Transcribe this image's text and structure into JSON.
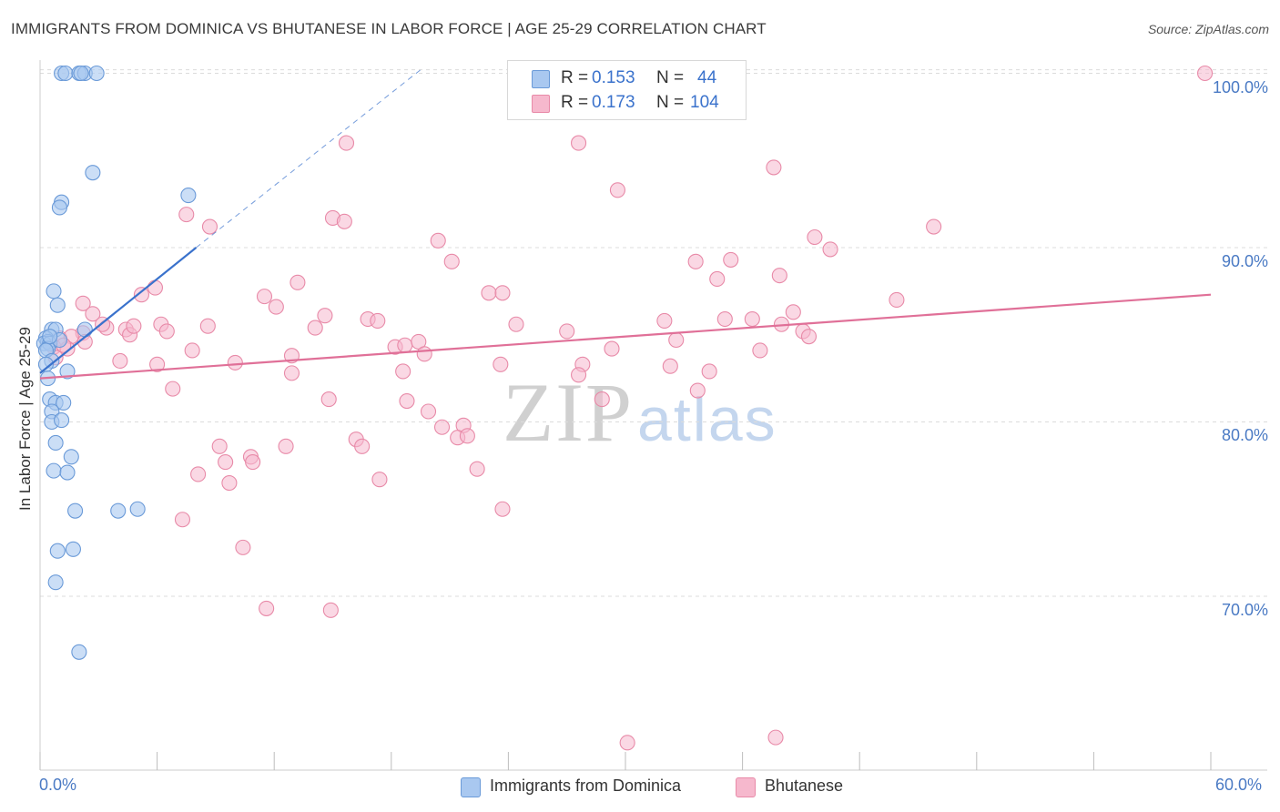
{
  "title": "IMMIGRANTS FROM DOMINICA VS BHUTANESE IN LABOR FORCE | AGE 25-29 CORRELATION CHART",
  "source": "Source: ZipAtlas.com",
  "watermark": {
    "zip": "ZIP",
    "atlas": "atlas"
  },
  "legend_top": [
    {
      "r_label": "R =",
      "r_value": "0.153",
      "n_label": "N =",
      "n_value": "44"
    },
    {
      "r_label": "R =",
      "r_value": "0.173",
      "n_label": "N =",
      "n_value": "104"
    }
  ],
  "colors": {
    "dominica_fill": "#a9c8f0",
    "dominica_stroke": "#6a9ad8",
    "dominica_line": "#3a72cc",
    "bhutanese_fill": "#f6b8cd",
    "bhutanese_stroke": "#e88aa8",
    "bhutanese_line": "#e07098",
    "value_text": "#3a72cc",
    "axis_text": "#4a7ac4"
  },
  "chart_data": {
    "type": "scatter",
    "title": "IMMIGRANTS FROM DOMINICA VS BHUTANESE IN LABOR FORCE | AGE 25-29 CORRELATION CHART",
    "xlabel": "",
    "ylabel": "In Labor Force | Age 25-29",
    "x_tick_labels": [
      "0.0%",
      "60.0%"
    ],
    "y_tick_labels": [
      "70.0%",
      "80.0%",
      "90.0%",
      "100.0%"
    ],
    "y_ticks": [
      70,
      80,
      90,
      100
    ],
    "xlim": [
      0,
      60
    ],
    "ylim": [
      60.5,
      101.5
    ],
    "grid": true,
    "legend_position": "bottom",
    "series": [
      {
        "name": "Immigrants from Dominica",
        "r": 0.153,
        "n": 44,
        "trend": {
          "x": [
            0,
            8.0
          ],
          "y": [
            82.8,
            90.0
          ],
          "dashed_to": [
            19.5,
            100.2
          ]
        },
        "points": [
          [
            1.1,
            100.0
          ],
          [
            1.3,
            100.0
          ],
          [
            2.0,
            100.0
          ],
          [
            2.3,
            100.0
          ],
          [
            2.1,
            100.0
          ],
          [
            2.9,
            100.0
          ],
          [
            2.7,
            94.3
          ],
          [
            7.6,
            93.0
          ],
          [
            1.1,
            92.6
          ],
          [
            1.0,
            92.3
          ],
          [
            0.7,
            87.5
          ],
          [
            0.9,
            86.7
          ],
          [
            0.6,
            85.3
          ],
          [
            0.8,
            85.3
          ],
          [
            2.3,
            85.3
          ],
          [
            0.3,
            84.8
          ],
          [
            0.4,
            84.6
          ],
          [
            0.2,
            84.5
          ],
          [
            0.5,
            84.5
          ],
          [
            0.4,
            84.2
          ],
          [
            0.3,
            84.1
          ],
          [
            1.0,
            84.7
          ],
          [
            0.6,
            83.5
          ],
          [
            0.3,
            83.3
          ],
          [
            1.4,
            82.9
          ],
          [
            0.4,
            82.5
          ],
          [
            0.5,
            81.3
          ],
          [
            0.8,
            81.1
          ],
          [
            1.2,
            81.1
          ],
          [
            0.6,
            80.6
          ],
          [
            0.6,
            80.0
          ],
          [
            1.1,
            80.1
          ],
          [
            0.8,
            78.8
          ],
          [
            1.6,
            78.0
          ],
          [
            0.7,
            77.2
          ],
          [
            1.4,
            77.1
          ],
          [
            1.8,
            74.9
          ],
          [
            4.0,
            74.9
          ],
          [
            5.0,
            75.0
          ],
          [
            0.9,
            72.6
          ],
          [
            1.7,
            72.7
          ],
          [
            0.8,
            70.8
          ],
          [
            2.0,
            66.8
          ],
          [
            0.5,
            84.9
          ]
        ]
      },
      {
        "name": "Bhutanese",
        "r": 0.173,
        "n": 104,
        "trend": {
          "x": [
            0,
            60
          ],
          "y": [
            82.5,
            87.3
          ]
        },
        "points": [
          [
            59.7,
            100.0
          ],
          [
            15.7,
            96.0
          ],
          [
            27.6,
            96.0
          ],
          [
            37.6,
            94.6
          ],
          [
            29.6,
            93.3
          ],
          [
            7.5,
            91.9
          ],
          [
            8.7,
            91.2
          ],
          [
            15.0,
            91.7
          ],
          [
            15.6,
            91.5
          ],
          [
            20.4,
            90.4
          ],
          [
            39.7,
            90.6
          ],
          [
            40.5,
            89.9
          ],
          [
            45.8,
            91.2
          ],
          [
            21.1,
            89.2
          ],
          [
            33.6,
            89.2
          ],
          [
            35.4,
            89.3
          ],
          [
            34.7,
            88.2
          ],
          [
            37.9,
            88.4
          ],
          [
            13.2,
            88.0
          ],
          [
            5.2,
            87.3
          ],
          [
            5.9,
            87.7
          ],
          [
            11.5,
            87.2
          ],
          [
            12.1,
            86.6
          ],
          [
            23.0,
            87.4
          ],
          [
            23.7,
            87.4
          ],
          [
            43.9,
            87.0
          ],
          [
            2.2,
            86.8
          ],
          [
            2.7,
            86.2
          ],
          [
            14.6,
            86.1
          ],
          [
            16.8,
            85.9
          ],
          [
            17.3,
            85.8
          ],
          [
            32.0,
            85.8
          ],
          [
            35.1,
            85.9
          ],
          [
            36.5,
            85.9
          ],
          [
            38.6,
            86.3
          ],
          [
            2.2,
            85.1
          ],
          [
            3.4,
            85.4
          ],
          [
            4.4,
            85.3
          ],
          [
            4.6,
            85.0
          ],
          [
            4.8,
            85.5
          ],
          [
            6.2,
            85.6
          ],
          [
            6.5,
            85.2
          ],
          [
            8.6,
            85.5
          ],
          [
            14.1,
            85.4
          ],
          [
            24.4,
            85.6
          ],
          [
            27.0,
            85.2
          ],
          [
            38.0,
            85.6
          ],
          [
            39.1,
            85.2
          ],
          [
            39.4,
            84.9
          ],
          [
            1.0,
            84.8
          ],
          [
            1.6,
            84.9
          ],
          [
            2.3,
            84.6
          ],
          [
            0.7,
            84.3
          ],
          [
            1.4,
            84.2
          ],
          [
            7.8,
            84.1
          ],
          [
            18.2,
            84.3
          ],
          [
            18.7,
            84.4
          ],
          [
            19.4,
            84.6
          ],
          [
            29.3,
            84.2
          ],
          [
            32.6,
            84.7
          ],
          [
            36.9,
            84.1
          ],
          [
            4.1,
            83.5
          ],
          [
            6.0,
            83.3
          ],
          [
            10.0,
            83.4
          ],
          [
            12.9,
            83.8
          ],
          [
            19.7,
            83.9
          ],
          [
            23.6,
            83.3
          ],
          [
            27.8,
            83.3
          ],
          [
            32.3,
            83.2
          ],
          [
            34.3,
            82.9
          ],
          [
            12.9,
            82.8
          ],
          [
            18.6,
            82.9
          ],
          [
            27.6,
            82.7
          ],
          [
            6.8,
            81.9
          ],
          [
            14.8,
            81.3
          ],
          [
            18.8,
            81.2
          ],
          [
            28.8,
            81.3
          ],
          [
            33.7,
            81.8
          ],
          [
            19.9,
            80.6
          ],
          [
            20.6,
            79.7
          ],
          [
            21.7,
            79.8
          ],
          [
            21.4,
            79.1
          ],
          [
            21.9,
            79.2
          ],
          [
            16.2,
            79.0
          ],
          [
            16.5,
            78.6
          ],
          [
            12.6,
            78.6
          ],
          [
            9.2,
            78.6
          ],
          [
            10.8,
            78.0
          ],
          [
            10.9,
            77.7
          ],
          [
            9.5,
            77.7
          ],
          [
            8.1,
            77.0
          ],
          [
            22.4,
            77.3
          ],
          [
            9.7,
            76.5
          ],
          [
            17.4,
            76.7
          ],
          [
            23.7,
            75.0
          ],
          [
            7.3,
            74.4
          ],
          [
            10.4,
            72.8
          ],
          [
            11.6,
            69.3
          ],
          [
            14.9,
            69.2
          ],
          [
            30.1,
            61.6
          ],
          [
            37.7,
            61.9
          ],
          [
            0.8,
            83.7
          ],
          [
            1.2,
            84.4
          ],
          [
            3.2,
            85.6
          ]
        ]
      }
    ]
  }
}
